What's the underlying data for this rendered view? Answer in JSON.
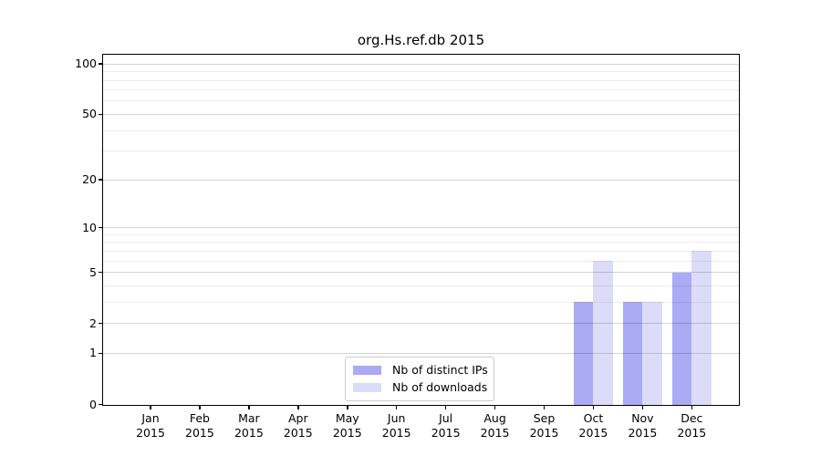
{
  "chart_data": {
    "type": "bar",
    "title": "org.Hs.ref.db 2015",
    "x_year_label": "2015",
    "categories": [
      "Jan",
      "Feb",
      "Mar",
      "Apr",
      "May",
      "Jun",
      "Jul",
      "Aug",
      "Sep",
      "Oct",
      "Nov",
      "Dec"
    ],
    "series": [
      {
        "name": "Nb of distinct IPs",
        "color": "#aaaaf5",
        "values": [
          0,
          0,
          0,
          0,
          0,
          0,
          0,
          0,
          0,
          3,
          3,
          5
        ]
      },
      {
        "name": "Nb of downloads",
        "color": "#dcdcf8",
        "values": [
          0,
          0,
          0,
          0,
          0,
          0,
          0,
          0,
          0,
          6,
          3,
          7
        ]
      }
    ],
    "yscale": "log1p",
    "yticks": [
      0,
      1,
      2,
      5,
      10,
      20,
      50,
      100
    ],
    "ylim": [
      0,
      113
    ],
    "grid": "horizontal",
    "grid_values": [
      1,
      2,
      3,
      4,
      5,
      6,
      7,
      8,
      9,
      10,
      20,
      30,
      40,
      50,
      60,
      70,
      80,
      90,
      100
    ],
    "legend": {
      "position": "bottom-center-inside",
      "entries": [
        "Nb of distinct IPs",
        "Nb of downloads"
      ]
    },
    "colors": {
      "axis": "#000000",
      "major_grid": "#d1d1d1",
      "minor_grid": "#ebebeb",
      "background": "#ffffff"
    }
  }
}
